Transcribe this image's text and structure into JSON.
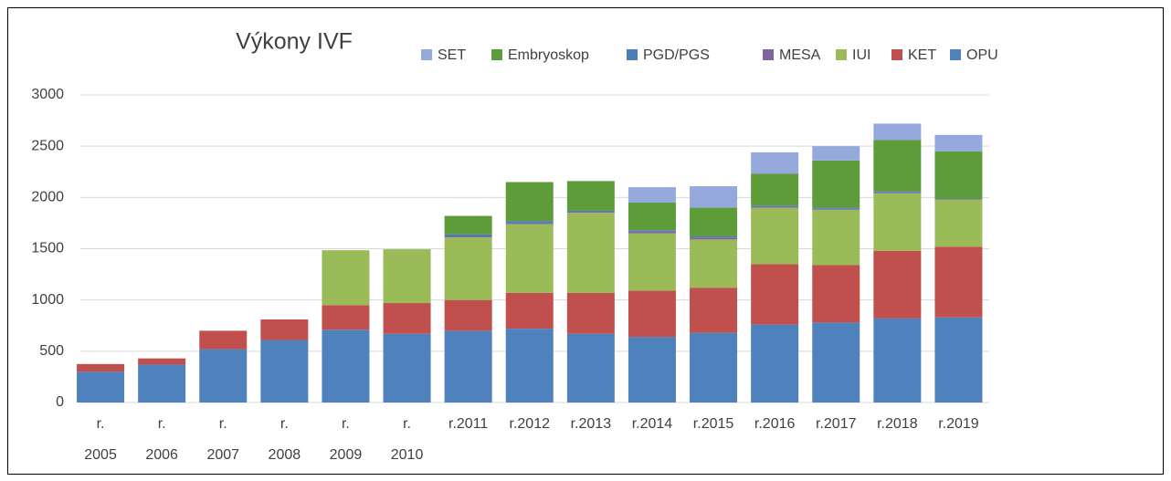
{
  "chart_data": {
    "type": "bar",
    "stacked": true,
    "title": "Výkony IVF",
    "categories": [
      "r. 2005",
      "r. 2006",
      "r. 2007",
      "r. 2008",
      "r. 2009",
      "r. 2010",
      "r.2011",
      "r.2012",
      "r.2013",
      "r.2014",
      "r.2015",
      "r.2016",
      "r.2017",
      "r.2018",
      "r.2019"
    ],
    "series": [
      {
        "name": "OPU",
        "color": "#4f81bd",
        "values": [
          300,
          370,
          520,
          610,
          710,
          670,
          700,
          720,
          670,
          640,
          680,
          760,
          780,
          820,
          830
        ]
      },
      {
        "name": "KET",
        "color": "#c0504d",
        "values": [
          75,
          60,
          180,
          200,
          240,
          300,
          300,
          350,
          400,
          450,
          440,
          590,
          560,
          660,
          690
        ]
      },
      {
        "name": "IUI",
        "color": "#9bbb59",
        "values": [
          0,
          0,
          0,
          0,
          535,
          525,
          610,
          670,
          780,
          560,
          470,
          550,
          540,
          560,
          460
        ]
      },
      {
        "name": "MESA",
        "color": "#8064a2",
        "values": [
          0,
          0,
          0,
          0,
          0,
          0,
          10,
          10,
          10,
          20,
          20,
          10,
          10,
          10,
          5
        ]
      },
      {
        "name": "PGD/PGS",
        "color": "#4a7ebb",
        "values": [
          0,
          0,
          0,
          0,
          0,
          0,
          20,
          20,
          10,
          10,
          10,
          10,
          10,
          10,
          5
        ]
      },
      {
        "name": "Embryoskop",
        "color": "#5e9c3a",
        "values": [
          0,
          0,
          0,
          0,
          0,
          0,
          180,
          380,
          290,
          270,
          280,
          310,
          460,
          500,
          460
        ]
      },
      {
        "name": "SET",
        "color": "#95a9dc",
        "values": [
          0,
          0,
          0,
          0,
          0,
          0,
          0,
          0,
          0,
          150,
          210,
          210,
          140,
          160,
          160
        ]
      }
    ],
    "ylim": [
      0,
      3000
    ],
    "yticks": [
      0,
      500,
      1000,
      1500,
      2000,
      2500,
      3000
    ],
    "grid": true,
    "legend": "top"
  }
}
